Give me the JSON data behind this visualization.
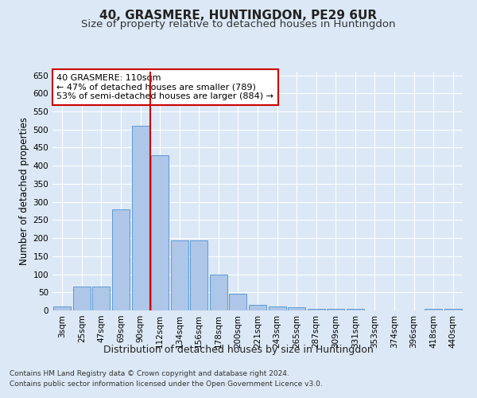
{
  "title": "40, GRASMERE, HUNTINGDON, PE29 6UR",
  "subtitle": "Size of property relative to detached houses in Huntingdon",
  "xlabel": "Distribution of detached houses by size in Huntingdon",
  "ylabel": "Number of detached properties",
  "footnote1": "Contains HM Land Registry data © Crown copyright and database right 2024.",
  "footnote2": "Contains public sector information licensed under the Open Government Licence v3.0.",
  "bar_labels": [
    "3sqm",
    "25sqm",
    "47sqm",
    "69sqm",
    "90sqm",
    "112sqm",
    "134sqm",
    "156sqm",
    "178sqm",
    "200sqm",
    "221sqm",
    "243sqm",
    "265sqm",
    "287sqm",
    "309sqm",
    "331sqm",
    "353sqm",
    "374sqm",
    "396sqm",
    "418sqm",
    "440sqm"
  ],
  "bar_values": [
    10,
    65,
    65,
    280,
    510,
    430,
    193,
    193,
    100,
    46,
    15,
    10,
    8,
    5,
    5,
    5,
    0,
    0,
    0,
    5,
    5
  ],
  "bar_color": "#aec6e8",
  "bar_edge_color": "#5b9bd5",
  "background_color": "#dce8f5",
  "vline_x_index": 5,
  "vline_color": "#cc0000",
  "annotation_text": "40 GRASMERE: 110sqm\n← 47% of detached houses are smaller (789)\n53% of semi-detached houses are larger (884) →",
  "annotation_box_color": "white",
  "annotation_box_edge": "#cc0000",
  "ylim": [
    0,
    660
  ],
  "yticks": [
    0,
    50,
    100,
    150,
    200,
    250,
    300,
    350,
    400,
    450,
    500,
    550,
    600,
    650
  ],
  "title_fontsize": 11,
  "subtitle_fontsize": 9.5,
  "xlabel_fontsize": 9,
  "ylabel_fontsize": 8.5,
  "tick_fontsize": 7.5,
  "annot_fontsize": 8,
  "footnote_fontsize": 6.5
}
